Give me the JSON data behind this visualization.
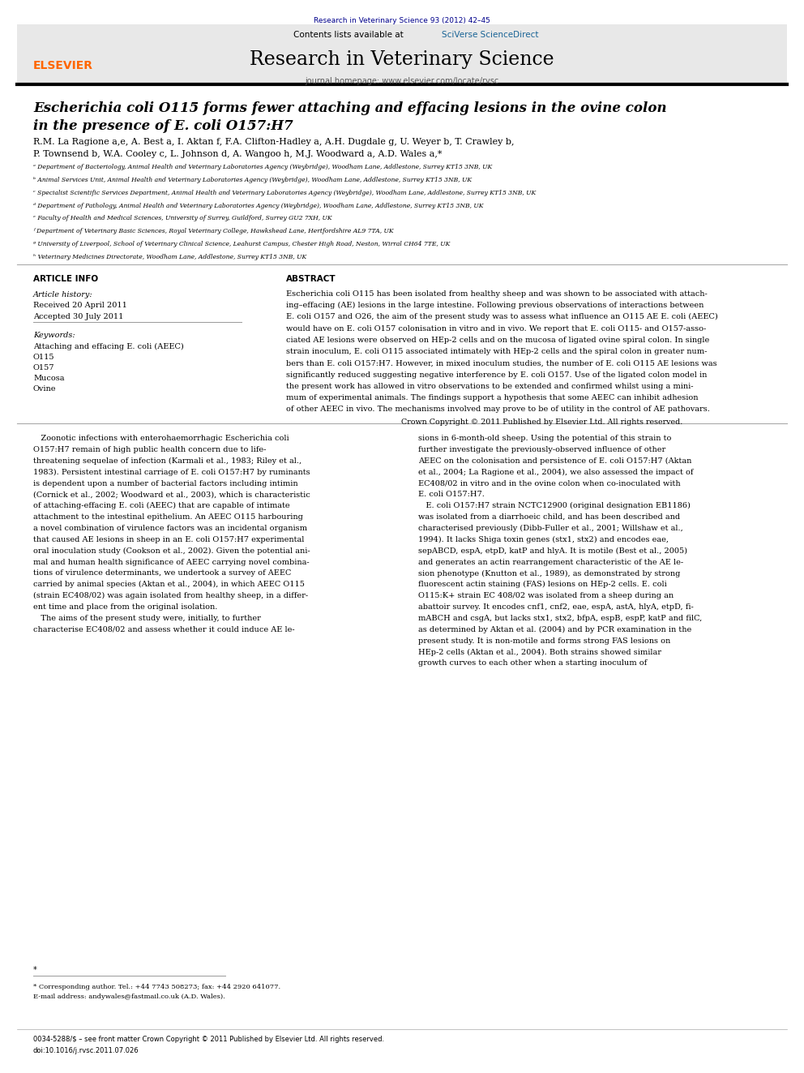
{
  "page_width": 9.92,
  "page_height": 13.23,
  "bg_color": "#ffffff",
  "journal_ref": "Research in Veterinary Science 93 (2012) 42–45",
  "journal_ref_color": "#00008B",
  "header_bg": "#e8e8e8",
  "contents_text": "Contents lists available at ",
  "sciverse_text": "SciVerse ScienceDirect",
  "sciverse_color": "#1a6496",
  "journal_name": "Research in Veterinary Science",
  "journal_homepage": "journal homepage: www.elsevier.com/locate/rvsc",
  "article_title_line1": "Escherichia coli O115 forms fewer attaching and effacing lesions in the ovine colon",
  "article_title_line2": "in the presence of E. coli O157:H7",
  "authors": "R.M. La Ragione a,e, A. Best a, I. Aktan f, F.A. Clifton-Hadley a, A.H. Dugdale g, U. Weyer b, T. Crawley b,",
  "authors2": "P. Townsend b, W.A. Cooley c, L. Johnson d, A. Wangoo h, M.J. Woodward a, A.D. Wales a,*",
  "affil_a": "ᵃ Department of Bacteriology, Animal Health and Veterinary Laboratories Agency (Weybridge), Woodham Lane, Addlestone, Surrey KT15 3NB, UK",
  "affil_b": "ᵇ Animal Services Unit, Animal Health and Veterinary Laboratories Agency (Weybridge), Woodham Lane, Addlestone, Surrey KT15 3NB, UK",
  "affil_c": "ᶜ Specialist Scientific Services Department, Animal Health and Veterinary Laboratories Agency (Weybridge), Woodham Lane, Addlestone, Surrey KT15 3NB, UK",
  "affil_d": "ᵈ Department of Pathology, Animal Health and Veterinary Laboratories Agency (Weybridge), Woodham Lane, Addlestone, Surrey KT15 3NB, UK",
  "affil_e": "ᵉ Faculty of Health and Medical Sciences, University of Surrey, Guildford, Surrey GU2 7XH, UK",
  "affil_f": "ᶠ Department of Veterinary Basic Sciences, Royal Veterinary College, Hawkshead Lane, Hertfordshire AL9 7TA, UK",
  "affil_g": "ᵍ University of Liverpool, School of Veterinary Clinical Science, Leahurst Campus, Chester High Road, Neston, Wirral CH64 7TE, UK",
  "affil_h": "ʰ Veterinary Medicines Directorate, Woodham Lane, Addlestone, Surrey KT15 3NB, UK",
  "article_info_header": "ARTICLE INFO",
  "abstract_header": "ABSTRACT",
  "article_history": "Article history:",
  "received": "Received 20 April 2011",
  "accepted": "Accepted 30 July 2011",
  "keywords_header": "Keywords:",
  "keywords": [
    "Attaching and effacing E. coli (AEEC)",
    "O115",
    "O157",
    "Mucosa",
    "Ovine"
  ],
  "copyright": "Crown Copyright © 2011 Published by Elsevier Ltd. All rights reserved.",
  "footer_text": "0034-5288/$ – see front matter Crown Copyright © 2011 Published by Elsevier Ltd. All rights reserved.",
  "doi_text": "doi:10.1016/j.rvsc.2011.07.026",
  "elsevier_color": "#FF6600",
  "link_color": "#1a6496",
  "corresponding_note": "* Corresponding author. Tel.: +44 7743 508273; fax: +44 2920 641077.",
  "email_note": "E-mail address: andywales@fastmail.co.uk (A.D. Wales)."
}
